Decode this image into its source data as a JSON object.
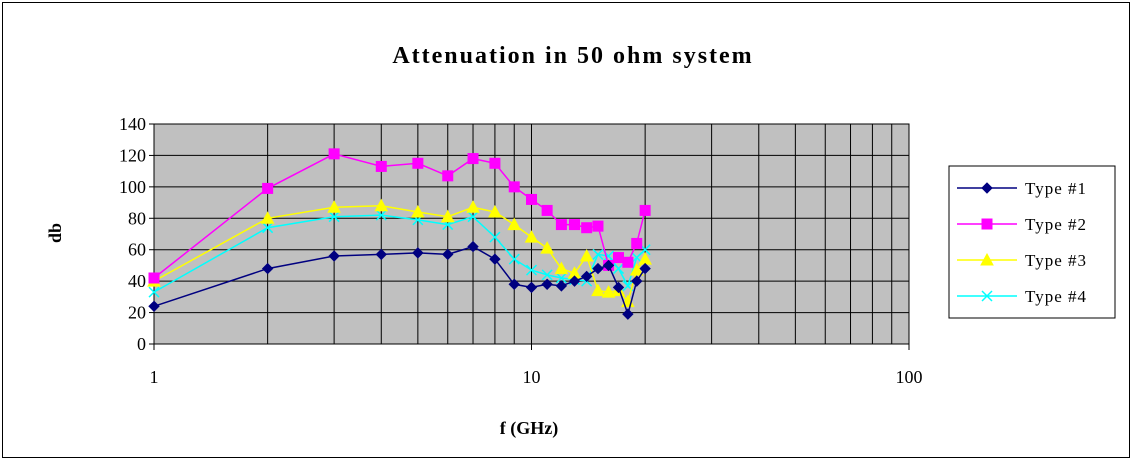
{
  "chart_data": {
    "type": "line",
    "title": "Attenuation in 50 ohm system",
    "xlabel": "f (GHz)",
    "ylabel": "db",
    "xscale": "log",
    "xlim": [
      1,
      100
    ],
    "ylim": [
      0,
      140
    ],
    "x_ticks": [
      "1",
      "10",
      "100"
    ],
    "y_ticks": [
      "0",
      "20",
      "40",
      "60",
      "80",
      "100",
      "120",
      "140"
    ],
    "grid": true,
    "plot_background": "#c0c0c0",
    "legend_position": "right",
    "series": [
      {
        "name": "Type #1",
        "color": "#000080",
        "marker": "diamond",
        "x": [
          1,
          2,
          3,
          4,
          5,
          6,
          7,
          8,
          9,
          10,
          11,
          12,
          13,
          14,
          15,
          16,
          17,
          18,
          19,
          20
        ],
        "y": [
          24,
          48,
          56,
          57,
          58,
          57,
          62,
          54,
          38,
          36,
          38,
          37,
          40,
          43,
          48,
          50,
          36,
          19,
          40,
          48
        ]
      },
      {
        "name": "Type #2",
        "color": "#ff00ff",
        "marker": "square",
        "x": [
          1,
          2,
          3,
          4,
          5,
          6,
          7,
          8,
          9,
          10,
          11,
          12,
          13,
          14,
          15,
          16,
          17,
          18,
          19,
          20
        ],
        "y": [
          42,
          99,
          121,
          113,
          115,
          107,
          118,
          115,
          100,
          92,
          85,
          76,
          76,
          74,
          75,
          50,
          55,
          52,
          64,
          85
        ]
      },
      {
        "name": "Type #3",
        "color": "#ffff00",
        "marker": "triangle",
        "x": [
          1,
          2,
          3,
          4,
          5,
          6,
          7,
          8,
          9,
          10,
          11,
          12,
          13,
          14,
          15,
          16,
          17,
          18,
          19,
          20
        ],
        "y": [
          40,
          80,
          87,
          88,
          84,
          81,
          87,
          84,
          76,
          68,
          61,
          48,
          45,
          56,
          34,
          33,
          34,
          27,
          47,
          54
        ]
      },
      {
        "name": "Type #4",
        "color": "#00ffff",
        "marker": "x",
        "x": [
          1,
          2,
          3,
          4,
          5,
          6,
          7,
          8,
          9,
          10,
          11,
          12,
          13,
          14,
          15,
          16,
          17,
          18,
          19,
          20
        ],
        "y": [
          33,
          74,
          81,
          82,
          79,
          76,
          81,
          68,
          54,
          47,
          44,
          42,
          41,
          40,
          57,
          56,
          48,
          37,
          55,
          60
        ]
      }
    ]
  }
}
